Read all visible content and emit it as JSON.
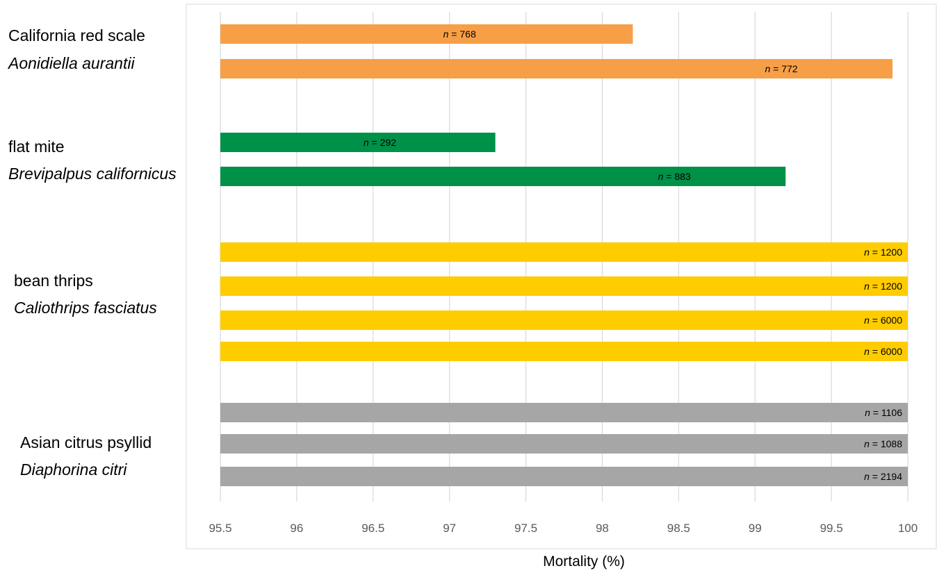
{
  "chart_data": {
    "type": "bar",
    "orientation": "horizontal",
    "title": "",
    "xlabel": "Mortality (%)",
    "ylabel": "",
    "xlim": [
      95.5,
      100
    ],
    "xticks": [
      95.5,
      96,
      96.5,
      97,
      97.5,
      98,
      98.5,
      99,
      99.5,
      100
    ],
    "grid": "vertical",
    "label_prefix": "n",
    "label_sep": " = ",
    "groups": [
      {
        "common_name": "California red scale",
        "latin_name": "Aonidiella aurantii",
        "color": "#F79F47",
        "bars": [
          {
            "value": 98.2,
            "n": "768"
          },
          {
            "value": 99.9,
            "n": "772"
          }
        ]
      },
      {
        "common_name": "flat mite",
        "latin_name": "Brevipalpus californicus",
        "color": "#009149",
        "bars": [
          {
            "value": 97.3,
            "n": "292"
          },
          {
            "value": 99.2,
            "n": "883"
          }
        ]
      },
      {
        "common_name": "bean thrips",
        "latin_name": "Caliothrips fasciatus",
        "color": "#FFCC00",
        "bars": [
          {
            "value": 100,
            "n": "1200"
          },
          {
            "value": 100,
            "n": "1200"
          },
          {
            "value": 100,
            "n": "6000"
          },
          {
            "value": 100,
            "n": "6000"
          }
        ]
      },
      {
        "common_name": "Asian citrus psyllid",
        "latin_name": "Diaphorina citri",
        "color": "#A6A6A6",
        "bars": [
          {
            "value": 100,
            "n": "1106"
          },
          {
            "value": 100,
            "n": "1088"
          },
          {
            "value": 100,
            "n": "2194"
          }
        ]
      }
    ]
  }
}
